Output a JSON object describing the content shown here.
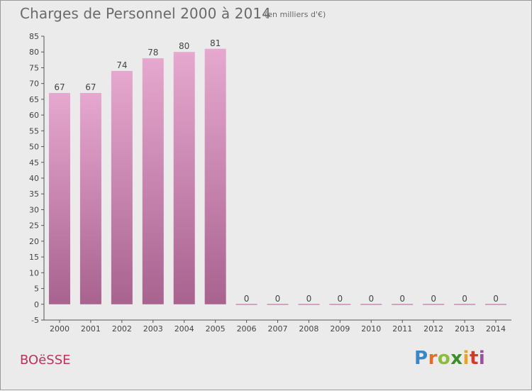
{
  "header": {
    "title": "Charges de Personnel 2000 à 2014",
    "unit_note": "(en milliers d'€)"
  },
  "footer": {
    "commune": "BOëSSE",
    "logo": [
      "P",
      "r",
      "o",
      "x",
      "i",
      "t",
      "i"
    ]
  },
  "colors": {
    "bar_top": "#e6a8cf",
    "bar_bottom": "#a8638f",
    "background": "#ebebeb",
    "commune_label": "#c0305a"
  },
  "chart_data": {
    "type": "bar",
    "categories": [
      "2000",
      "2001",
      "2002",
      "2003",
      "2004",
      "2005",
      "2006",
      "2007",
      "2008",
      "2009",
      "2010",
      "2011",
      "2012",
      "2013",
      "2014"
    ],
    "values": [
      67,
      67,
      74,
      78,
      80,
      81,
      0,
      0,
      0,
      0,
      0,
      0,
      0,
      0,
      0
    ],
    "title": "Charges de Personnel 2000 à 2014",
    "ylim": [
      -5,
      85
    ],
    "yticks": [
      -5,
      0,
      5,
      10,
      15,
      20,
      25,
      30,
      35,
      40,
      45,
      50,
      55,
      60,
      65,
      70,
      75,
      80,
      85
    ],
    "grid": false,
    "legend": "none"
  }
}
